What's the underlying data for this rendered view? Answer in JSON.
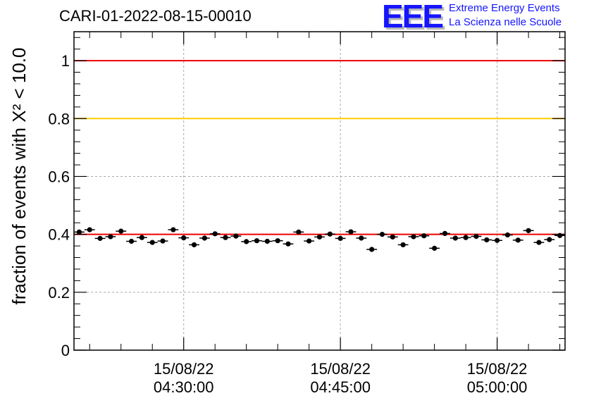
{
  "header": {
    "run_title": "CARI-01-2022-08-15-00010",
    "logo_text": "EEE",
    "logo_line1": "Extreme Energy Events",
    "logo_line2": "La Scienza nelle Scuole"
  },
  "chart_data": {
    "type": "scatter",
    "ylabel": "fraction of events with Χ² < 10.0",
    "ylim": [
      0,
      1.1
    ],
    "y_ticks": [
      0,
      0.2,
      0.4,
      0.6,
      0.8,
      1
    ],
    "y_tick_labels": [
      "0",
      "0.2",
      "0.4",
      "0.6",
      "0.8",
      "1"
    ],
    "x_ticks": [
      {
        "date": "15/08/22",
        "time": "04:30:00"
      },
      {
        "date": "15/08/22",
        "time": "04:45:00"
      },
      {
        "date": "15/08/22",
        "time": "05:00:00"
      }
    ],
    "xlim": [
      "04:19:30",
      "05:06:30"
    ],
    "grid": true,
    "reference_lines": [
      {
        "y": 1.0,
        "color": "#ee0000"
      },
      {
        "y": 0.8,
        "color": "#ffcc00"
      },
      {
        "y": 0.4,
        "color": "#ee0000"
      }
    ],
    "marker_color": "#000000",
    "series": [
      {
        "x": [
          "04:20:00",
          "04:21:00",
          "04:22:00",
          "04:23:00",
          "04:24:00",
          "04:25:00",
          "04:26:00",
          "04:27:00",
          "04:28:00",
          "04:29:00",
          "04:30:00",
          "04:31:00",
          "04:32:00",
          "04:33:00",
          "04:34:00",
          "04:35:00",
          "04:36:00",
          "04:37:00",
          "04:38:00",
          "04:39:00",
          "04:40:00",
          "04:41:00",
          "04:42:00",
          "04:43:00",
          "04:44:00",
          "04:45:00",
          "04:46:00",
          "04:47:00",
          "04:48:00",
          "04:49:00",
          "04:50:00",
          "04:51:00",
          "04:52:00",
          "04:53:00",
          "04:54:00",
          "04:55:00",
          "04:56:00",
          "04:57:00",
          "04:58:00",
          "04:59:00",
          "05:00:00",
          "05:01:00",
          "05:02:00",
          "05:03:00",
          "05:04:00",
          "05:05:00",
          "05:06:00"
        ],
        "y": [
          0.408,
          0.416,
          0.386,
          0.392,
          0.411,
          0.376,
          0.389,
          0.372,
          0.377,
          0.416,
          0.388,
          0.364,
          0.387,
          0.402,
          0.389,
          0.394,
          0.375,
          0.378,
          0.376,
          0.378,
          0.367,
          0.408,
          0.377,
          0.391,
          0.401,
          0.386,
          0.409,
          0.387,
          0.348,
          0.4,
          0.391,
          0.364,
          0.392,
          0.395,
          0.352,
          0.403,
          0.387,
          0.389,
          0.393,
          0.381,
          0.379,
          0.398,
          0.38,
          0.413,
          0.372,
          0.382,
          0.396
        ],
        "y_err": [
          0.008,
          0.008,
          0.008,
          0.008,
          0.008,
          0.008,
          0.008,
          0.008,
          0.008,
          0.008,
          0.008,
          0.008,
          0.008,
          0.008,
          0.008,
          0.008,
          0.008,
          0.008,
          0.008,
          0.008,
          0.008,
          0.008,
          0.008,
          0.008,
          0.008,
          0.008,
          0.008,
          0.008,
          0.008,
          0.008,
          0.008,
          0.008,
          0.008,
          0.008,
          0.008,
          0.008,
          0.008,
          0.008,
          0.008,
          0.008,
          0.008,
          0.008,
          0.008,
          0.008,
          0.008,
          0.008,
          0.008
        ]
      }
    ]
  }
}
